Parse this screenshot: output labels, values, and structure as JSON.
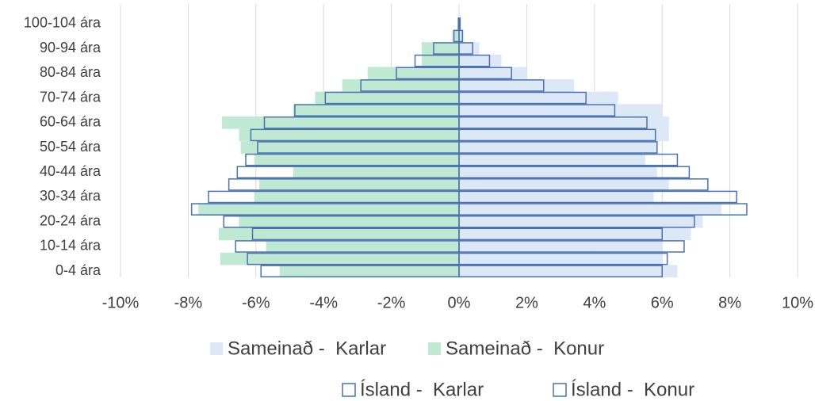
{
  "chart_data": {
    "type": "bar",
    "orientation": "horizontal",
    "stacked": false,
    "categories": [
      "0-4 ára",
      null,
      "10-14 ára",
      null,
      "20-24 ára",
      null,
      "30-34 ára",
      null,
      "40-44 ára",
      null,
      "50-54 ára",
      null,
      "60-64 ára",
      null,
      "70-74 ára",
      null,
      "80-84 ára",
      null,
      "90-94 ára",
      null,
      "100-104 ára"
    ],
    "series": [
      {
        "name": "Sameinað -  Karlar",
        "color": "#dce8f5",
        "filled": true,
        "values": [
          6.45,
          6.0,
          6.0,
          6.85,
          7.2,
          7.75,
          5.75,
          6.2,
          5.85,
          5.5,
          5.85,
          6.2,
          6.2,
          6.0,
          4.7,
          3.4,
          2.0,
          1.25,
          0.6,
          0.15,
          0.05
        ]
      },
      {
        "name": "Sameinað -  Konur",
        "color": "#bfe9d3",
        "filled": true,
        "values": [
          -5.3,
          -7.05,
          -5.7,
          -7.1,
          -6.5,
          -7.7,
          -6.05,
          -5.9,
          -4.9,
          -6.05,
          -6.45,
          -6.5,
          -7.0,
          -4.9,
          -4.25,
          -3.45,
          -2.7,
          -1.1,
          -1.1,
          -0.2,
          -0.02
        ]
      },
      {
        "name": "Ísland -  Karlar",
        "color": "#4a72b0",
        "filled": false,
        "values": [
          6.0,
          6.15,
          6.65,
          6.0,
          6.95,
          8.5,
          8.2,
          7.35,
          6.8,
          6.45,
          5.85,
          5.8,
          5.55,
          4.6,
          3.75,
          2.5,
          1.55,
          0.9,
          0.4,
          0.1,
          0.03
        ]
      },
      {
        "name": "Ísland -  Konur",
        "color": "#4a72b0",
        "filled": false,
        "values": [
          -5.85,
          -6.25,
          -6.6,
          -6.1,
          -6.95,
          -7.9,
          -7.4,
          -6.8,
          -6.55,
          -6.3,
          -5.95,
          -6.15,
          -5.75,
          -4.85,
          -3.95,
          -2.9,
          -1.85,
          -1.3,
          -0.75,
          -0.15,
          -0.02
        ]
      }
    ],
    "xlim": [
      -10,
      10
    ],
    "xticks": [
      {
        "value": -10,
        "label": "-10%"
      },
      {
        "value": -8,
        "label": "-8%"
      },
      {
        "value": -6,
        "label": "-6%"
      },
      {
        "value": -4,
        "label": "-4%"
      },
      {
        "value": -2,
        "label": "-2%"
      },
      {
        "value": 0,
        "label": "0%"
      },
      {
        "value": 2,
        "label": "2%"
      },
      {
        "value": 4,
        "label": "4%"
      },
      {
        "value": 6,
        "label": "6%"
      },
      {
        "value": 8,
        "label": "8%"
      },
      {
        "value": 10,
        "label": "10%"
      }
    ],
    "grid": true,
    "legend": "bottom"
  }
}
